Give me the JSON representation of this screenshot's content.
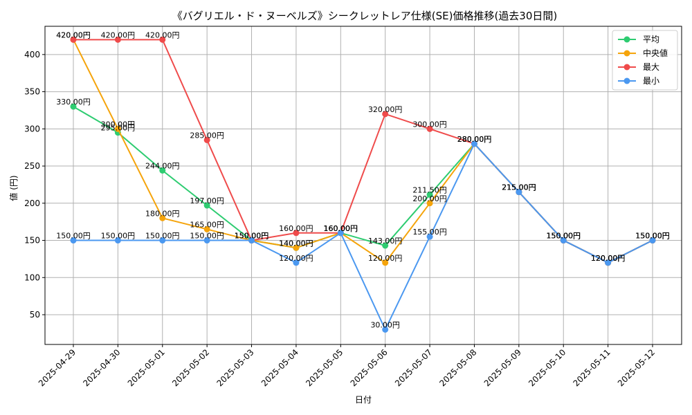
{
  "chart_data": {
    "type": "line",
    "title": "《バグリエル・ド・ヌーベルズ》シークレットレア仕様(SE)価格推移(過去30日間)",
    "xlabel": "日付",
    "ylabel": "値 (円)",
    "ylim": [
      10,
      438
    ],
    "yticks": [
      50,
      100,
      150,
      200,
      250,
      300,
      350,
      400
    ],
    "grid": true,
    "legend_position": "top-right",
    "value_suffix": "円",
    "categories": [
      "2025-04-29",
      "2025-04-30",
      "2025-05-01",
      "2025-05-02",
      "2025-05-03",
      "2025-05-04",
      "2025-05-05",
      "2025-05-06",
      "2025-05-07",
      "2025-05-08",
      "2025-05-09",
      "2025-05-10",
      "2025-05-11",
      "2025-05-12"
    ],
    "series": [
      {
        "name": "平均",
        "color": "#2ecc71",
        "values": [
          330,
          295,
          244,
          197,
          150,
          140,
          160,
          143,
          211.5,
          280,
          215,
          150,
          120,
          150
        ]
      },
      {
        "name": "中央値",
        "color": "#f5a40b",
        "values": [
          420,
          300,
          180,
          165,
          150,
          140,
          160,
          120,
          200,
          280,
          215,
          150,
          120,
          150
        ]
      },
      {
        "name": "最大",
        "color": "#ef4b4b",
        "values": [
          420,
          420,
          420,
          285,
          150,
          160,
          160,
          320,
          300,
          280,
          215,
          150,
          120,
          150
        ]
      },
      {
        "name": "最小",
        "color": "#4b98f0",
        "values": [
          150,
          150,
          150,
          150,
          150,
          120,
          160,
          30,
          155,
          280,
          215,
          150,
          120,
          150
        ]
      }
    ]
  }
}
